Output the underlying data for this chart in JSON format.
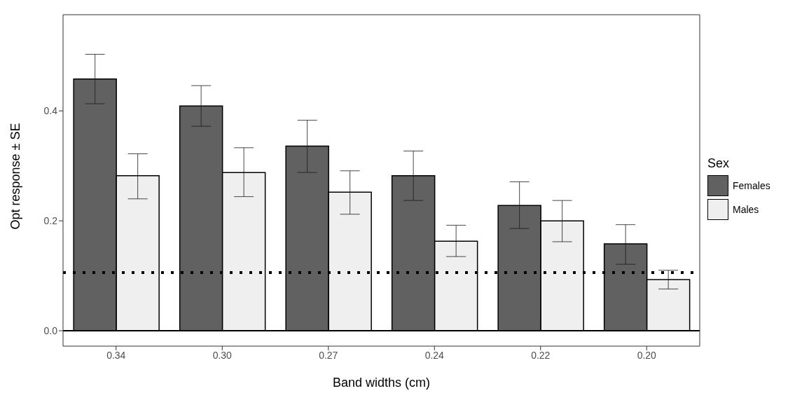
{
  "chart_data": {
    "type": "bar",
    "xlabel": "Band widths (cm)",
    "ylabel": "Opt response ± SE",
    "legend_title": "Sex",
    "legend": "right",
    "categories": [
      "0.34",
      "0.30",
      "0.27",
      "0.24",
      "0.22",
      "0.20"
    ],
    "series": [
      {
        "name": "Females",
        "color": "#616161",
        "values": [
          0.458,
          0.409,
          0.336,
          0.282,
          0.228,
          0.158
        ],
        "errors": [
          [
            0.413,
            0.503
          ],
          [
            0.372,
            0.446
          ],
          [
            0.288,
            0.383
          ],
          [
            0.237,
            0.327
          ],
          [
            0.186,
            0.271
          ],
          [
            0.121,
            0.193
          ]
        ]
      },
      {
        "name": "Males",
        "color": "#efefef",
        "values": [
          0.282,
          0.288,
          0.252,
          0.163,
          0.2,
          0.093
        ],
        "errors": [
          [
            0.24,
            0.322
          ],
          [
            0.244,
            0.333
          ],
          [
            0.212,
            0.291
          ],
          [
            0.135,
            0.192
          ],
          [
            0.162,
            0.237
          ],
          [
            0.076,
            0.11
          ]
        ]
      }
    ],
    "ylim": [
      -0.028,
      0.575
    ],
    "yticks": [
      {
        "value": 0,
        "label": "0.0"
      },
      {
        "value": 0.2,
        "label": "0.2"
      },
      {
        "value": 0.4,
        "label": "0.4"
      }
    ],
    "grid": false,
    "ref_lines": [
      {
        "axis": "y",
        "value": 0,
        "line_style": "solid",
        "color": "#000000"
      },
      {
        "axis": "y",
        "value": 0.106,
        "line_style": "dotted",
        "color": "#000000"
      }
    ]
  }
}
